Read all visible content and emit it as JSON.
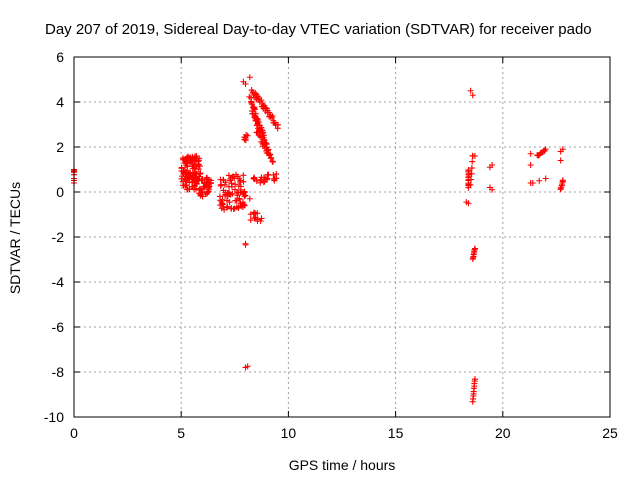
{
  "chart_data": {
    "type": "scatter",
    "title": "Day 207 of 2019, Sidereal Day-to-day VTEC variation (SDTVAR) for receiver pado",
    "xlabel": "GPS time / hours",
    "ylabel": "SDTVAR / TECUs",
    "xlim": [
      0,
      25
    ],
    "ylim": [
      -10,
      6
    ],
    "xticks": [
      0,
      5,
      10,
      15,
      20,
      25
    ],
    "yticks": [
      -10,
      -8,
      -6,
      -4,
      -2,
      0,
      2,
      4,
      6
    ],
    "xtick_labels": [
      "0",
      "5",
      "10",
      "15",
      "20",
      "25"
    ],
    "ytick_labels": [
      "-10",
      "-8",
      "-6",
      "-4",
      "-2",
      "0",
      "2",
      "4",
      "6"
    ],
    "grid": true,
    "legend": "none",
    "marker": "plus",
    "marker_color": "#ff0000",
    "clusters": [
      {
        "x": [
          0.0,
          0.0
        ],
        "y": [
          0.3,
          1.0
        ],
        "n": 5
      },
      {
        "x": [
          5.0,
          5.9
        ],
        "y": [
          0.1,
          1.6
        ],
        "n": 120
      },
      {
        "x": [
          5.8,
          6.4
        ],
        "y": [
          -0.2,
          0.7
        ],
        "n": 40
      },
      {
        "x": [
          6.8,
          8.0
        ],
        "y": [
          -0.8,
          0.8
        ],
        "n": 80
      },
      {
        "x": [
          7.8,
          8.2
        ],
        "y": [
          2.3,
          2.6
        ],
        "n": 4
      },
      {
        "x": [
          8.2,
          8.8
        ],
        "y": [
          -1.3,
          -0.9
        ],
        "n": 12
      },
      {
        "x": [
          8.3,
          9.0
        ],
        "y": [
          0.4,
          0.7
        ],
        "n": 12
      },
      {
        "x": [
          8.9,
          9.5
        ],
        "y": [
          0.5,
          0.8
        ],
        "n": 10
      }
    ],
    "segments": [
      {
        "x1": 8.3,
        "y1": 4.5,
        "x2": 9.5,
        "y2": 2.9,
        "n": 40,
        "spread": 0.25
      },
      {
        "x1": 8.2,
        "y1": 4.2,
        "x2": 9.2,
        "y2": 1.5,
        "n": 40,
        "spread": 0.2
      },
      {
        "x1": 8.3,
        "y1": 3.6,
        "x2": 8.9,
        "y2": 2.2,
        "n": 20,
        "spread": 0.2
      },
      {
        "x1": 8.5,
        "y1": 2.7,
        "x2": 9.3,
        "y2": 1.3,
        "n": 15,
        "spread": 0.15
      },
      {
        "x1": 18.4,
        "y1": 0.2,
        "x2": 18.4,
        "y2": 1.0,
        "n": 12,
        "spread": 0.05
      },
      {
        "x1": 18.6,
        "y1": -3.0,
        "x2": 18.7,
        "y2": -2.5,
        "n": 8,
        "spread": 0.05
      },
      {
        "x1": 18.6,
        "y1": -9.3,
        "x2": 18.7,
        "y2": -8.3,
        "n": 10,
        "spread": 0.04
      },
      {
        "x1": 18.5,
        "y1": 0.3,
        "x2": 18.6,
        "y2": 1.6,
        "n": 6,
        "spread": 0.05
      },
      {
        "x1": 21.6,
        "y1": 1.6,
        "x2": 22.0,
        "y2": 1.9,
        "n": 10,
        "spread": 0.1
      },
      {
        "x1": 22.7,
        "y1": 0.1,
        "x2": 22.8,
        "y2": 0.5,
        "n": 8,
        "spread": 0.05
      }
    ],
    "points": [
      [
        0.0,
        0.4
      ],
      [
        0.0,
        0.6
      ],
      [
        0.0,
        0.95
      ],
      [
        7.9,
        4.9
      ],
      [
        8.0,
        4.8
      ],
      [
        8.2,
        5.1
      ],
      [
        8.1,
        2.5
      ],
      [
        8.0,
        2.4
      ],
      [
        8.2,
        -0.3
      ],
      [
        8.0,
        -2.3
      ],
      [
        8.0,
        -2.35
      ],
      [
        8.0,
        -7.8
      ],
      [
        8.1,
        -7.75
      ],
      [
        18.4,
        -0.5
      ],
      [
        18.3,
        -0.45
      ],
      [
        18.5,
        4.5
      ],
      [
        18.6,
        4.3
      ],
      [
        18.6,
        1.6
      ],
      [
        18.7,
        1.6
      ],
      [
        19.4,
        1.1
      ],
      [
        19.5,
        1.2
      ],
      [
        19.4,
        0.2
      ],
      [
        19.5,
        0.1
      ],
      [
        21.3,
        1.7
      ],
      [
        21.3,
        1.2
      ],
      [
        21.3,
        0.4
      ],
      [
        21.4,
        0.4
      ],
      [
        21.7,
        0.5
      ],
      [
        22.0,
        0.6
      ],
      [
        22.7,
        1.4
      ],
      [
        22.7,
        1.8
      ],
      [
        22.8,
        1.9
      ]
    ]
  }
}
